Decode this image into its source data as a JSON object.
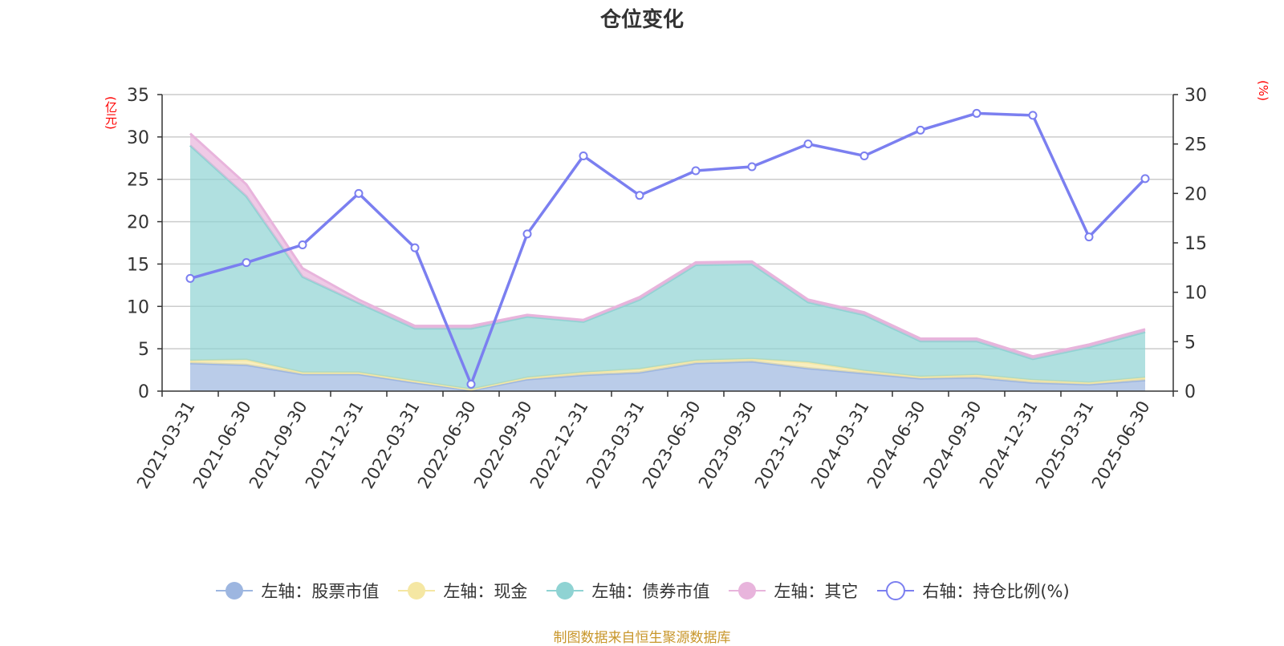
{
  "chart_data": {
    "type": "area",
    "title": "仓位变化",
    "categories": [
      "2021-03-31",
      "2021-06-30",
      "2021-09-30",
      "2021-12-31",
      "2022-03-31",
      "2022-06-30",
      "2022-09-30",
      "2022-12-31",
      "2023-03-31",
      "2023-06-30",
      "2023-09-30",
      "2023-12-31",
      "2024-03-31",
      "2024-06-30",
      "2024-09-30",
      "2024-12-31",
      "2025-03-31",
      "2025-06-30"
    ],
    "y_left": {
      "label": "(亿元)",
      "ylim": [
        0,
        35
      ],
      "ticks": [
        0,
        5,
        10,
        15,
        20,
        25,
        30,
        35
      ]
    },
    "y_right": {
      "label": "(%)",
      "ylim": [
        0,
        30
      ],
      "ticks": [
        0,
        5,
        10,
        15,
        20,
        25,
        30
      ]
    },
    "stacked_series": [
      {
        "name": "左轴：股票市值",
        "color": "#9db6e0",
        "axis": "left",
        "values": [
          3.3,
          3.1,
          2.0,
          2.0,
          1.0,
          0.1,
          1.4,
          1.9,
          2.2,
          3.3,
          3.5,
          2.7,
          2.1,
          1.5,
          1.6,
          1.0,
          0.8,
          1.3
        ]
      },
      {
        "name": "左轴：现金",
        "color": "#f5e7a3",
        "axis": "left",
        "values": [
          0.3,
          0.6,
          0.2,
          0.2,
          0.2,
          0.1,
          0.2,
          0.3,
          0.4,
          0.3,
          0.3,
          0.7,
          0.3,
          0.2,
          0.3,
          0.3,
          0.2,
          0.3
        ]
      },
      {
        "name": "左轴：债券市值",
        "color": "#8fd3d3",
        "axis": "left",
        "values": [
          25.4,
          19.3,
          11.3,
          8.2,
          6.2,
          7.2,
          7.2,
          6.0,
          8.2,
          11.3,
          11.2,
          7.1,
          6.6,
          4.2,
          4.0,
          2.5,
          4.2,
          5.4
        ]
      },
      {
        "name": "左轴：其它",
        "color": "#e8b4dc",
        "axis": "left",
        "values": [
          1.4,
          1.4,
          1.0,
          0.4,
          0.3,
          0.3,
          0.2,
          0.2,
          0.3,
          0.3,
          0.3,
          0.3,
          0.3,
          0.3,
          0.3,
          0.3,
          0.3,
          0.3
        ]
      }
    ],
    "line_series": [
      {
        "name": "右轴：持仓比例(%)",
        "color": "#7b7ff0",
        "axis": "right",
        "values": [
          11.4,
          13.0,
          14.8,
          20.0,
          14.5,
          0.7,
          15.9,
          23.8,
          19.8,
          22.3,
          22.7,
          25.0,
          23.8,
          26.4,
          28.1,
          27.9,
          15.6,
          21.5
        ]
      }
    ],
    "grid": true,
    "legend_position": "bottom"
  },
  "source_note": "制图数据来自恒生聚源数据库"
}
